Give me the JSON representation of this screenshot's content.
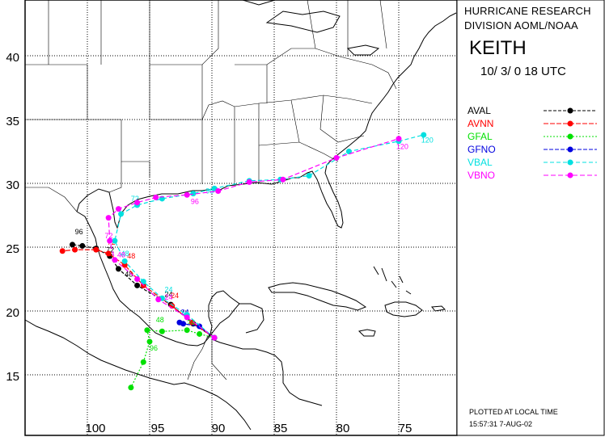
{
  "header": {
    "line1": "HURRICANE RESEARCH",
    "line2": "DIVISION AOML/NOAA",
    "storm_name": "KEITH",
    "date_time": "10/ 3/ 0 18   UTC"
  },
  "footer": {
    "line1": "PLOTTED AT LOCAL TIME",
    "line2": "15:57:31      7-AUG-02"
  },
  "axes": {
    "lon_ticks": [
      "100",
      "95",
      "90",
      "85",
      "80",
      "75"
    ],
    "lat_ticks": [
      "40",
      "35",
      "30",
      "25",
      "20",
      "15"
    ]
  },
  "models": [
    {
      "name": "AVAL",
      "color": "#000000",
      "dash": "4,2",
      "track": [
        [
          -89.8,
          17.9
        ],
        [
          -91.5,
          19.0
        ],
        [
          -93.3,
          20.5
        ],
        [
          -96.0,
          22.0
        ],
        [
          -97.5,
          23.3
        ],
        [
          -98.2,
          24.3
        ],
        [
          -99.3,
          24.9
        ],
        [
          -100.4,
          25.1
        ],
        [
          -101.2,
          25.2
        ]
      ],
      "labels": [
        {
          "t": "24",
          "at": [
            -93.8,
            21.1
          ]
        },
        {
          "t": "48",
          "at": [
            -97.0,
            22.7
          ]
        },
        {
          "t": "72",
          "at": [
            -98.5,
            24.6
          ]
        },
        {
          "t": "96",
          "at": [
            -101.0,
            26.0
          ]
        }
      ]
    },
    {
      "name": "AVNN",
      "color": "#ff0000",
      "dash": "6,2",
      "track": [
        [
          -89.8,
          17.9
        ],
        [
          -91.6,
          19.1
        ],
        [
          -93.2,
          20.4
        ],
        [
          -95.5,
          22.0
        ],
        [
          -97.0,
          23.6
        ],
        [
          -98.3,
          24.5
        ],
        [
          -99.3,
          24.8
        ],
        [
          -101.0,
          24.8
        ],
        [
          -102.0,
          24.7
        ]
      ],
      "labels": [
        {
          "t": "24",
          "at": [
            -93.3,
            21.0
          ]
        },
        {
          "t": "48",
          "at": [
            -96.8,
            24.1
          ]
        },
        {
          "t": "72",
          "at": [
            -98.4,
            25.2
          ]
        }
      ]
    },
    {
      "name": "GFAL",
      "color": "#00e000",
      "dash": "2,2",
      "track": [
        [
          -89.8,
          17.9
        ],
        [
          -91.0,
          18.2
        ],
        [
          -92.0,
          18.5
        ],
        [
          -94.0,
          18.4
        ],
        [
          -95.2,
          18.5
        ],
        [
          -95.0,
          17.6
        ],
        [
          -95.5,
          16.0
        ],
        [
          -96.5,
          14.0
        ]
      ],
      "labels": [
        {
          "t": "24",
          "at": [
            -92.0,
            18.9
          ]
        },
        {
          "t": "48",
          "at": [
            -94.5,
            19.1
          ]
        },
        {
          "t": "96",
          "at": [
            -95.0,
            16.9
          ]
        }
      ]
    },
    {
      "name": "GFNO",
      "color": "#0000e0",
      "dash": "5,2",
      "track": [
        [
          -89.8,
          17.9
        ],
        [
          -91.0,
          18.8
        ],
        [
          -92.3,
          19.0
        ],
        [
          -92.6,
          19.1
        ]
      ],
      "labels": [
        {
          "t": "24",
          "at": [
            -92.5,
            19.7
          ]
        }
      ]
    },
    {
      "name": "VBAL",
      "color": "#00e0e0",
      "dash": "5,3",
      "track": [
        [
          -89.8,
          17.9
        ],
        [
          -92.0,
          19.7
        ],
        [
          -94.0,
          21.0
        ],
        [
          -95.5,
          22.3
        ],
        [
          -97.0,
          23.9
        ],
        [
          -97.8,
          25.5
        ],
        [
          -97.3,
          27.6
        ],
        [
          -96.0,
          28.3
        ],
        [
          -94.0,
          28.8
        ],
        [
          -91.5,
          29.2
        ],
        [
          -89.8,
          29.6
        ],
        [
          -87.0,
          30.2
        ],
        [
          -84.5,
          30.3
        ],
        [
          -82.2,
          30.6
        ],
        [
          -79.0,
          32.5
        ],
        [
          -75.0,
          33.3
        ],
        [
          -73.0,
          33.8
        ]
      ],
      "labels": [
        {
          "t": "24",
          "at": [
            -93.8,
            21.5
          ]
        },
        {
          "t": "48",
          "at": [
            -97.3,
            24.3
          ]
        },
        {
          "t": "72",
          "at": [
            -96.5,
            28.6
          ]
        },
        {
          "t": "96",
          "at": [
            -90.5,
            29.2
          ]
        },
        {
          "t": "120",
          "at": [
            -73.2,
            33.2
          ]
        }
      ]
    },
    {
      "name": "VBNO",
      "color": "#ff00ff",
      "dash": "6,3",
      "track": [
        [
          -89.8,
          17.9
        ],
        [
          -92.0,
          19.5
        ],
        [
          -94.3,
          20.9
        ],
        [
          -96.0,
          22.5
        ],
        [
          -97.8,
          24.0
        ],
        [
          -98.2,
          25.5
        ],
        [
          -98.3,
          27.3
        ],
        [
          -97.5,
          28.0
        ],
        [
          -96.0,
          28.5
        ],
        [
          -94.5,
          28.9
        ],
        [
          -92.0,
          29.1
        ],
        [
          -89.5,
          29.4
        ],
        [
          -87.0,
          30.1
        ],
        [
          -84.3,
          30.3
        ],
        [
          -80.0,
          32.0
        ],
        [
          -75.0,
          33.5
        ]
      ],
      "labels": [
        {
          "t": "24",
          "at": [
            -93.8,
            20.9
          ]
        },
        {
          "t": "48",
          "at": [
            -97.6,
            24.2
          ]
        },
        {
          "t": "72",
          "at": [
            -98.6,
            25.7
          ]
        },
        {
          "t": "96",
          "at": [
            -91.7,
            28.4
          ]
        },
        {
          "t": "120",
          "at": [
            -75.2,
            32.7
          ]
        }
      ]
    }
  ]
}
